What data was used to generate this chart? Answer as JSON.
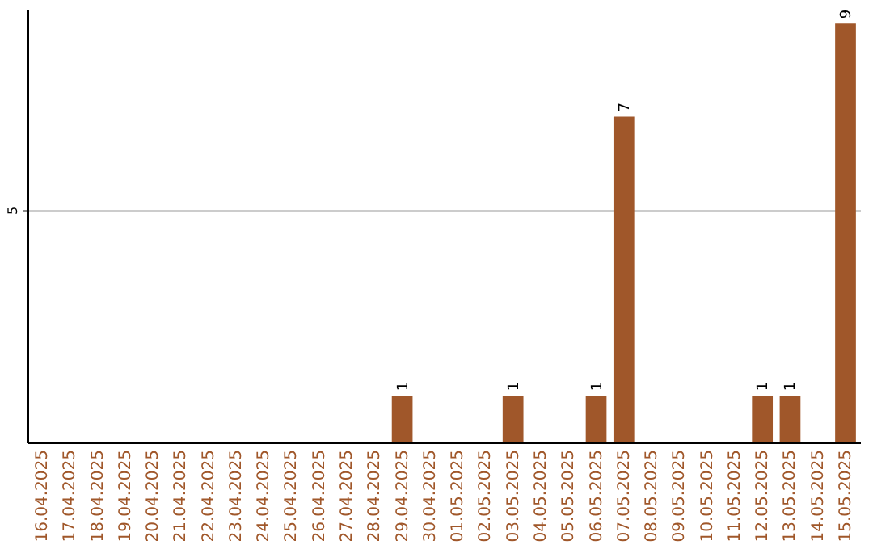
{
  "chart_data": {
    "type": "bar",
    "categories": [
      "16.04.2025",
      "17.04.2025",
      "18.04.2025",
      "19.04.2025",
      "20.04.2025",
      "21.04.2025",
      "22.04.2025",
      "23.04.2025",
      "24.04.2025",
      "25.04.2025",
      "26.04.2025",
      "27.04.2025",
      "28.04.2025",
      "29.04.2025",
      "30.04.2025",
      "01.05.2025",
      "02.05.2025",
      "03.05.2025",
      "04.05.2025",
      "05.05.2025",
      "06.05.2025",
      "07.05.2025",
      "08.05.2025",
      "09.05.2025",
      "10.05.2025",
      "11.05.2025",
      "12.05.2025",
      "13.05.2025",
      "14.05.2025",
      "15.05.2025"
    ],
    "series": [
      {
        "color": "#a0572a",
        "values": [
          null,
          null,
          null,
          null,
          null,
          null,
          null,
          null,
          null,
          null,
          null,
          null,
          null,
          1,
          null,
          null,
          null,
          1,
          null,
          null,
          1,
          7,
          null,
          null,
          null,
          null,
          1,
          1,
          null,
          9
        ]
      }
    ],
    "ylim": [
      0,
      9.3
    ],
    "yticks": [
      5
    ],
    "grid": "y",
    "data_labels": true
  }
}
